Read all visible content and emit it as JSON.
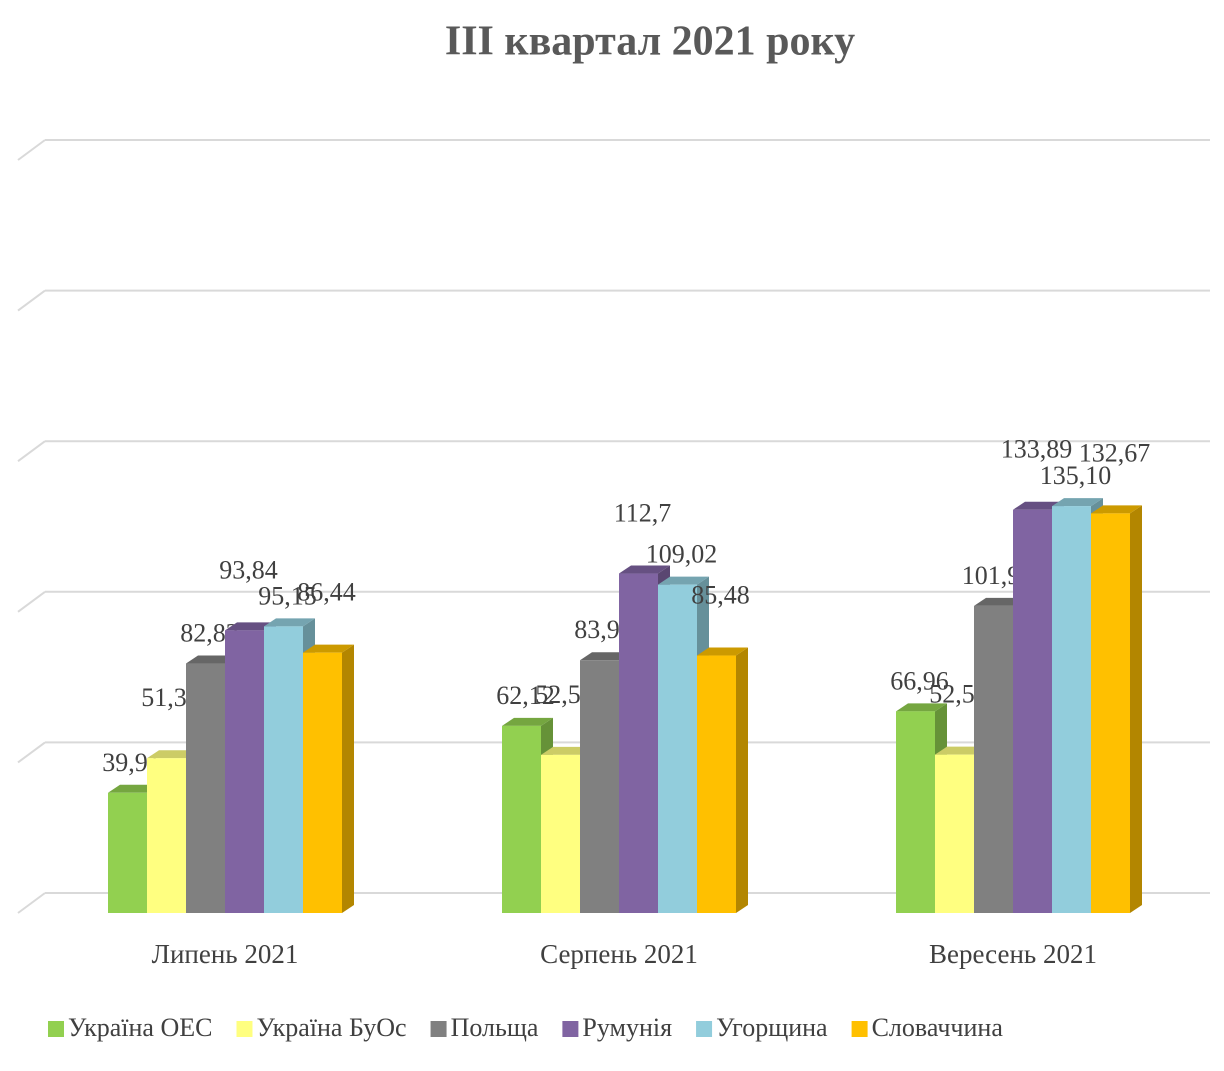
{
  "chart_data": {
    "type": "bar3d",
    "title": "III квартал 2021 року",
    "categories": [
      "Липень 2021",
      "Серпень 2021",
      "Вересень 2021"
    ],
    "series": [
      {
        "name": "Україна ОЕС",
        "color": "#92d050",
        "values": [
          39.91,
          62.12,
          66.96
        ],
        "value_labels": [
          "39,91",
          "62,12",
          "66,96"
        ]
      },
      {
        "name": "Україна БуОс",
        "color": "#ffff80",
        "values": [
          51.39,
          52.51,
          52.58
        ],
        "value_labels": [
          "51,39",
          "52,51",
          "52,58"
        ]
      },
      {
        "name": "Польща",
        "color": "#808080",
        "values": [
          82.82,
          83.92,
          101.95
        ],
        "value_labels": [
          "82,82",
          "83,92",
          "101,95"
        ]
      },
      {
        "name": "Румунія",
        "color": "#8064a2",
        "values": [
          93.84,
          112.7,
          133.89
        ],
        "value_labels": [
          "93,84",
          "112,7",
          "133,89"
        ]
      },
      {
        "name": "Угорщина",
        "color": "#92cddc",
        "values": [
          95.15,
          109.02,
          135.1
        ],
        "value_labels": [
          "95,15",
          "109,02",
          "135,10"
        ]
      },
      {
        "name": "Словаччина",
        "color": "#ffc000",
        "values": [
          86.44,
          85.48,
          132.67
        ],
        "value_labels": [
          "86,44",
          "85,48",
          "132,67"
        ]
      }
    ],
    "ylim": [
      0,
      250
    ],
    "yticks": [
      0,
      50,
      100,
      150,
      200,
      250
    ],
    "grid": true,
    "legend": "bottom"
  }
}
